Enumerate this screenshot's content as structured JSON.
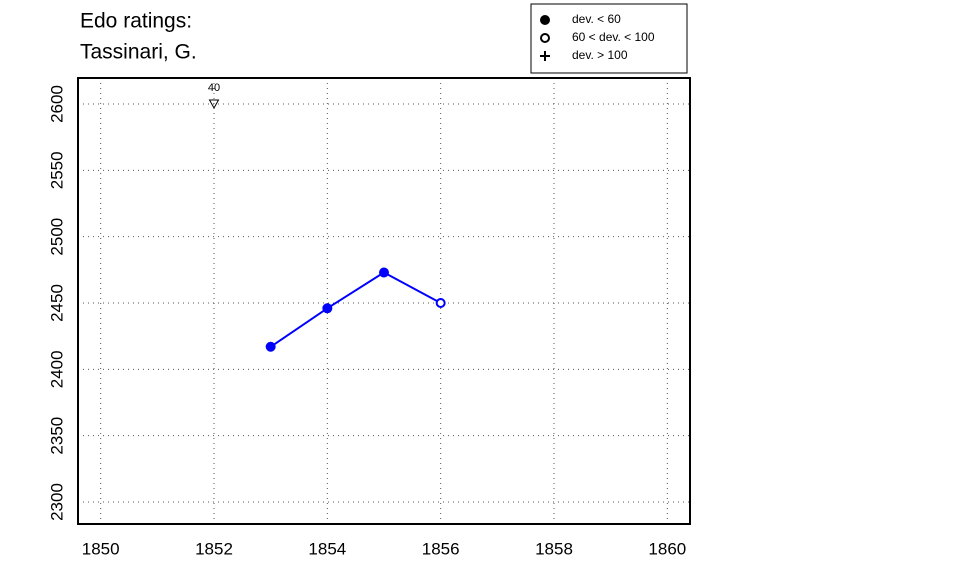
{
  "chart_data": {
    "type": "line",
    "title": [
      "Edo ratings:",
      "Tassinari, G."
    ],
    "x": [
      1853,
      1854,
      1855,
      1856
    ],
    "series": [
      {
        "color": "#0000ff",
        "values": [
          2417,
          2446,
          2473,
          2450
        ],
        "point_styles": [
          "filled",
          "filled",
          "filled",
          "open"
        ]
      }
    ],
    "markers": [
      {
        "x": 1852,
        "y": 2600,
        "label": "40",
        "symbol": "triangle-down"
      }
    ],
    "legend": [
      {
        "label": "dev. < 60",
        "symbol": "filled"
      },
      {
        "label": "60 < dev. < 100",
        "symbol": "open"
      },
      {
        "label": "dev. > 100",
        "symbol": "plus"
      }
    ],
    "legend_position": "top-right",
    "xlim": [
      1849.6,
      1860.4
    ],
    "ylim": [
      2283.4,
      2619.6
    ],
    "xticks": [
      1850,
      1852,
      1854,
      1856,
      1858,
      1860
    ],
    "yticks": [
      2300,
      2350,
      2400,
      2450,
      2500,
      2550,
      2600
    ],
    "grid": true
  }
}
